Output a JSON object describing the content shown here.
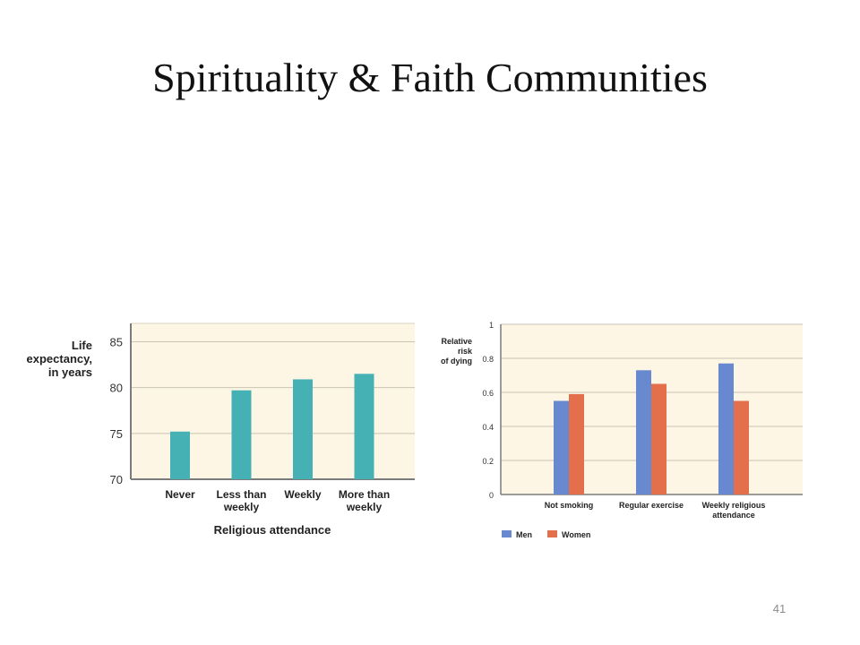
{
  "slide": {
    "title": "Spirituality & Faith Communities",
    "page_number": "41"
  },
  "chart_data": [
    {
      "type": "bar",
      "categories": [
        [
          "Never"
        ],
        [
          "Less than",
          "weekly"
        ],
        [
          "Weekly"
        ],
        [
          "More than",
          "weekly"
        ]
      ],
      "values": [
        75.2,
        79.7,
        80.9,
        81.5
      ],
      "ylabel": [
        "Life",
        "expectancy,",
        "in years"
      ],
      "xlabel": "Religious attendance",
      "ylim": [
        70,
        87
      ],
      "yticks": [
        70,
        75,
        80,
        85
      ],
      "grid": true,
      "colors": {
        "bar": "#45b1b4",
        "plot_bg": "#fdf6e4",
        "grid": "#c9c3b3",
        "axis": "#7b7b7b"
      }
    },
    {
      "type": "bar",
      "categories": [
        [
          "Not smoking"
        ],
        [
          "Regular exercise"
        ],
        [
          "Weekly religious",
          "attendance"
        ]
      ],
      "series": [
        {
          "name": "Men",
          "values": [
            0.55,
            0.73,
            0.77
          ],
          "color": "#6888cf"
        },
        {
          "name": "Women",
          "values": [
            0.59,
            0.65,
            0.55
          ],
          "color": "#e4704b"
        }
      ],
      "ylabel": [
        "Relative",
        "risk",
        "of dying"
      ],
      "xlabel": "",
      "ylim": [
        0,
        1
      ],
      "yticks": [
        0,
        0.2,
        0.4,
        0.6,
        0.8,
        1
      ],
      "yticklabels": [
        "0",
        "0.2",
        "0.4",
        "0.6",
        "0.8",
        "1"
      ],
      "grid": true,
      "legend": "bottom-left",
      "colors": {
        "plot_bg": "#fdf6e4",
        "grid": "#c9c3b3",
        "axis": "#7b7b7b"
      }
    }
  ]
}
